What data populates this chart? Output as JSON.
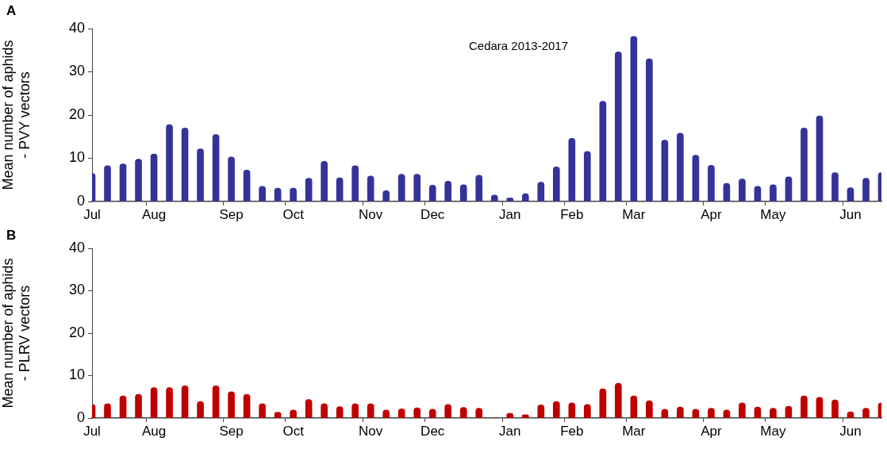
{
  "chart_data": [
    {
      "type": "bar",
      "title": "A",
      "ylabel": "Mean number of aphids\n- PVY vectors",
      "annotations": [
        "Cedara 2013-2017"
      ],
      "categories": [
        "Jul",
        null,
        null,
        null,
        "Aug",
        null,
        null,
        null,
        null,
        "Sep",
        null,
        null,
        null,
        "Oct",
        null,
        null,
        null,
        null,
        "Nov",
        null,
        null,
        null,
        "Dec",
        null,
        null,
        null,
        null,
        "Jan",
        null,
        null,
        null,
        "Feb",
        null,
        null,
        null,
        "Mar",
        null,
        null,
        null,
        null,
        "Apr",
        null,
        null,
        null,
        "May",
        null,
        null,
        null,
        null,
        "Jun",
        null,
        null
      ],
      "values": [
        6.5,
        8.3,
        8.7,
        9.8,
        11,
        17.8,
        17,
        12.2,
        15.5,
        10.3,
        7.3,
        3.5,
        3.1,
        3.1,
        5.4,
        9.3,
        5.5,
        8.3,
        5.9,
        2.5,
        6.3,
        6.3,
        3.8,
        4.7,
        3.9,
        6.1,
        1.5,
        0.8,
        1.8,
        4.5,
        8.0,
        14.6,
        11.6,
        23.2,
        34.6,
        38.2,
        33.0,
        14.2,
        15.8,
        10.7,
        8.4,
        4.2,
        5.2,
        3.5,
        3.9,
        5.7,
        17.0,
        19.8,
        6.7,
        3.2,
        5.4,
        6.7
      ],
      "color": "#333399",
      "ylim": [
        0,
        40
      ],
      "yticks": [
        0,
        10,
        20,
        30,
        40
      ]
    },
    {
      "type": "bar",
      "title": "B",
      "ylabel": "Mean number of aphids\n- PLRV vectors",
      "categories": [
        "Jul",
        null,
        null,
        null,
        "Aug",
        null,
        null,
        null,
        null,
        "Sep",
        null,
        null,
        null,
        "Oct",
        null,
        null,
        null,
        null,
        "Nov",
        null,
        null,
        null,
        "Dec",
        null,
        null,
        null,
        null,
        "Jan",
        null,
        null,
        null,
        "Feb",
        null,
        null,
        null,
        "Mar",
        null,
        null,
        null,
        null,
        "Apr",
        null,
        null,
        null,
        "May",
        null,
        null,
        null,
        null,
        "Jun",
        null,
        null
      ],
      "values": [
        3.2,
        3.4,
        5.2,
        5.6,
        7.2,
        7.2,
        7.6,
        3.9,
        7.6,
        6.2,
        5.6,
        3.4,
        1.4,
        1.9,
        4.4,
        3.4,
        2.7,
        3.4,
        3.4,
        1.9,
        2.2,
        2.4,
        2.1,
        3.2,
        2.5,
        2.3,
        0,
        1.1,
        0.8,
        3.1,
        3.9,
        3.6,
        3.2,
        6.9,
        8.2,
        5.2,
        4.1,
        2.1,
        2.6,
        2.1,
        2.3,
        1.9,
        3.6,
        2.6,
        2.3,
        2.8,
        5.2,
        4.9,
        4.3,
        1.5,
        2.3,
        3.6
      ],
      "color": "#c00000",
      "ylim": [
        0,
        40
      ],
      "yticks": [
        0,
        10,
        20,
        30,
        40
      ]
    }
  ]
}
